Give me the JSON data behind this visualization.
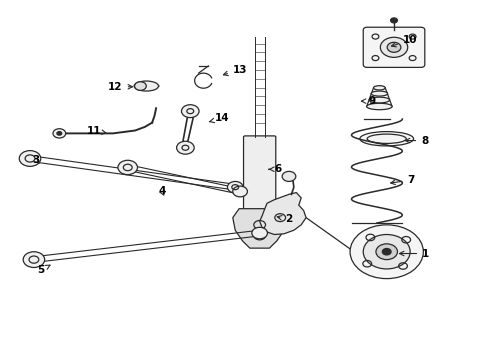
{
  "background_color": "#ffffff",
  "line_color": "#2a2a2a",
  "label_color": "#000000",
  "figsize": [
    4.9,
    3.6
  ],
  "dpi": 100,
  "label_positions": {
    "1": [
      0.87,
      0.295,
      0.808,
      0.295
    ],
    "2": [
      0.59,
      0.39,
      0.558,
      0.4
    ],
    "3": [
      0.072,
      0.555,
      0.085,
      0.54
    ],
    "4": [
      0.33,
      0.468,
      0.335,
      0.455
    ],
    "5": [
      0.082,
      0.248,
      0.108,
      0.268
    ],
    "6": [
      0.568,
      0.53,
      0.548,
      0.53
    ],
    "7": [
      0.84,
      0.5,
      0.79,
      0.49
    ],
    "8": [
      0.868,
      0.61,
      0.82,
      0.61
    ],
    "9": [
      0.76,
      0.72,
      0.73,
      0.72
    ],
    "10": [
      0.838,
      0.89,
      0.792,
      0.87
    ],
    "11": [
      0.192,
      0.638,
      0.218,
      0.63
    ],
    "12": [
      0.235,
      0.76,
      0.278,
      0.76
    ],
    "13": [
      0.49,
      0.808,
      0.448,
      0.79
    ],
    "14": [
      0.454,
      0.672,
      0.42,
      0.66
    ]
  }
}
